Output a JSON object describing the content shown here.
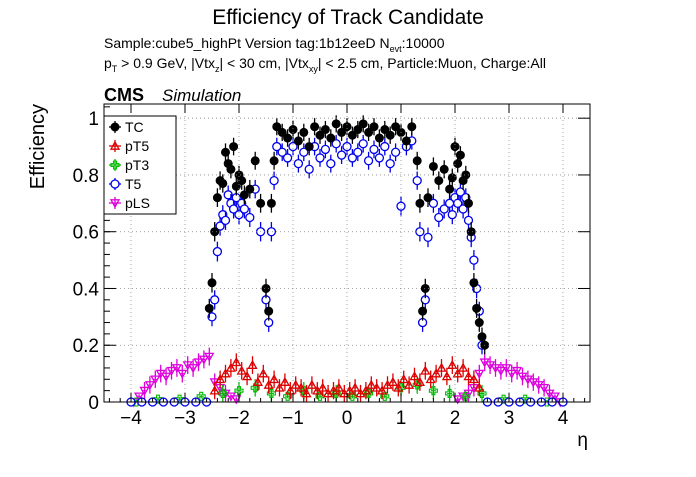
{
  "header": {
    "title": "Efficiency of Track Candidate",
    "line1": "Sample:cube5_highPt   Version tag:1b12eeD  N",
    "line1_sub": "evt",
    "line1_tail": ":10000",
    "line2_parts": [
      "p",
      "T",
      " > 0.9 GeV, |Vtx",
      "z",
      "| < 30 cm, |Vtx",
      "xy",
      "| < 2.5 cm, Particle:Muon, Charge:All"
    ],
    "cms": "CMS",
    "simulation": "Simulation"
  },
  "chart_data": {
    "type": "scatter",
    "title": "Efficiency of Track Candidate",
    "xlabel": "η",
    "ylabel": "Efficiency",
    "xlim": [
      -4.5,
      4.5
    ],
    "ylim": [
      0,
      1.05
    ],
    "xticks": [
      "−4",
      "−3",
      "−2",
      "−1",
      "0",
      "1",
      "2",
      "3",
      "4"
    ],
    "yticks": [
      "0",
      "0.2",
      "0.4",
      "0.6",
      "0.8",
      "1"
    ],
    "legend_position": "top-left",
    "series": [
      {
        "name": "TC",
        "color": "#000000",
        "marker": "filled-circle",
        "x": [
          -2.55,
          -2.5,
          -2.45,
          -2.4,
          -2.35,
          -2.3,
          -2.25,
          -2.2,
          -2.15,
          -2.1,
          -2.05,
          -2.0,
          -1.95,
          -1.9,
          -1.8,
          -1.7,
          -1.6,
          -1.5,
          -1.45,
          -1.4,
          -1.35,
          -1.3,
          -1.2,
          -1.1,
          -1.0,
          -0.9,
          -0.8,
          -0.7,
          -0.6,
          -0.5,
          -0.4,
          -0.3,
          -0.2,
          -0.1,
          0.0,
          0.1,
          0.2,
          0.3,
          0.4,
          0.5,
          0.6,
          0.7,
          0.8,
          0.9,
          1.0,
          1.1,
          1.2,
          1.3,
          1.35,
          1.4,
          1.45,
          1.5,
          1.6,
          1.7,
          1.8,
          1.9,
          1.95,
          2.0,
          2.05,
          2.1,
          2.15,
          2.2,
          2.25,
          2.3,
          2.35,
          2.4,
          2.45,
          2.5,
          2.55
        ],
        "y": [
          0.33,
          0.42,
          0.6,
          0.72,
          0.78,
          0.77,
          0.88,
          0.84,
          0.82,
          0.9,
          0.76,
          0.8,
          0.78,
          0.73,
          0.75,
          0.85,
          0.7,
          0.4,
          0.32,
          0.7,
          0.85,
          0.97,
          0.95,
          0.93,
          0.96,
          0.92,
          0.95,
          0.9,
          0.97,
          0.94,
          0.96,
          0.93,
          0.98,
          0.95,
          0.97,
          0.94,
          0.96,
          0.98,
          0.95,
          0.97,
          0.93,
          0.96,
          0.94,
          0.97,
          0.95,
          0.92,
          0.97,
          0.85,
          0.7,
          0.32,
          0.4,
          0.72,
          0.83,
          0.78,
          0.82,
          0.75,
          0.79,
          0.9,
          0.84,
          0.87,
          0.78,
          0.8,
          0.7,
          0.6,
          0.42,
          0.33,
          0.28,
          0.23,
          0.2
        ]
      },
      {
        "name": "pT5",
        "color": "#dd0000",
        "marker": "open-triangle-up",
        "x": [
          -2.45,
          -2.35,
          -2.25,
          -2.15,
          -2.05,
          -1.95,
          -1.85,
          -1.75,
          -1.65,
          -1.55,
          -1.45,
          -1.35,
          -1.25,
          -1.15,
          -1.05,
          -0.95,
          -0.85,
          -0.75,
          -0.65,
          -0.55,
          -0.45,
          -0.35,
          -0.25,
          -0.15,
          -0.05,
          0.05,
          0.15,
          0.25,
          0.35,
          0.45,
          0.55,
          0.65,
          0.75,
          0.85,
          0.95,
          1.05,
          1.15,
          1.25,
          1.35,
          1.45,
          1.55,
          1.65,
          1.75,
          1.85,
          1.95,
          2.05,
          2.15,
          2.25,
          2.35,
          2.45
        ],
        "y": [
          0.04,
          0.08,
          0.1,
          0.12,
          0.14,
          0.11,
          0.09,
          0.13,
          0.07,
          0.1,
          0.06,
          0.08,
          0.05,
          0.07,
          0.04,
          0.06,
          0.05,
          0.03,
          0.06,
          0.04,
          0.05,
          0.03,
          0.04,
          0.05,
          0.03,
          0.04,
          0.05,
          0.03,
          0.04,
          0.06,
          0.05,
          0.04,
          0.06,
          0.07,
          0.05,
          0.08,
          0.06,
          0.09,
          0.07,
          0.11,
          0.08,
          0.1,
          0.12,
          0.09,
          0.13,
          0.1,
          0.12,
          0.09,
          0.08,
          0.05
        ]
      },
      {
        "name": "pT3",
        "color": "#00bb00",
        "marker": "open-cross",
        "x": [
          -3.9,
          -3.5,
          -3.1,
          -2.7,
          -2.3,
          -2.0,
          -1.7,
          -1.4,
          -1.1,
          -0.8,
          -0.5,
          -0.2,
          0.1,
          0.4,
          0.7,
          1.0,
          1.3,
          1.6,
          1.9,
          2.2,
          2.5,
          2.9,
          3.3,
          3.7
        ],
        "y": [
          0.0,
          0.01,
          0.01,
          0.02,
          0.03,
          0.04,
          0.05,
          0.03,
          0.02,
          0.04,
          0.02,
          0.03,
          0.02,
          0.03,
          0.02,
          0.05,
          0.06,
          0.04,
          0.03,
          0.02,
          0.03,
          0.01,
          0.01,
          0.0
        ]
      },
      {
        "name": "T5",
        "color": "#0000ee",
        "marker": "open-circle",
        "x": [
          -4.0,
          -3.8,
          -3.6,
          -3.4,
          -3.2,
          -3.0,
          -2.8,
          -2.6,
          -2.5,
          -2.45,
          -2.4,
          -2.35,
          -2.3,
          -2.25,
          -2.2,
          -2.15,
          -2.1,
          -2.05,
          -2.0,
          -1.95,
          -1.9,
          -1.8,
          -1.7,
          -1.6,
          -1.5,
          -1.45,
          -1.4,
          -1.35,
          -1.3,
          -1.2,
          -1.1,
          -1.0,
          -0.9,
          -0.8,
          -0.7,
          -0.6,
          -0.5,
          -0.4,
          -0.3,
          -0.2,
          -0.1,
          0.0,
          0.1,
          0.2,
          0.3,
          0.4,
          0.5,
          0.6,
          0.7,
          0.8,
          0.9,
          1.0,
          1.1,
          1.2,
          1.3,
          1.35,
          1.4,
          1.45,
          1.5,
          1.6,
          1.7,
          1.8,
          1.9,
          1.95,
          2.0,
          2.05,
          2.1,
          2.15,
          2.2,
          2.25,
          2.3,
          2.35,
          2.4,
          2.45,
          2.5,
          2.6,
          2.8,
          3.0,
          3.2,
          3.4,
          3.6,
          3.8,
          4.0
        ],
        "y": [
          0.0,
          0.0,
          0.0,
          0.0,
          0.0,
          0.0,
          0.0,
          0.0,
          0.3,
          0.36,
          0.53,
          0.62,
          0.66,
          0.64,
          0.73,
          0.7,
          0.68,
          0.72,
          0.66,
          0.7,
          0.68,
          0.65,
          0.75,
          0.6,
          0.36,
          0.28,
          0.6,
          0.78,
          0.9,
          0.88,
          0.86,
          0.9,
          0.84,
          0.88,
          0.82,
          0.9,
          0.86,
          0.89,
          0.84,
          0.91,
          0.87,
          0.9,
          0.86,
          0.88,
          0.91,
          0.85,
          0.89,
          0.86,
          0.9,
          0.84,
          0.88,
          0.69,
          0.9,
          0.92,
          0.78,
          0.6,
          0.28,
          0.36,
          0.58,
          0.7,
          0.65,
          0.68,
          0.7,
          0.66,
          0.72,
          0.7,
          0.74,
          0.68,
          0.72,
          0.64,
          0.58,
          0.5,
          0.4,
          0.32,
          0.2,
          0.0,
          0.0,
          0.0,
          0.0,
          0.0,
          0.0,
          0.0,
          0.0
        ]
      },
      {
        "name": "pLS",
        "color": "#dd00dd",
        "marker": "open-triangle-down",
        "x": [
          -3.95,
          -3.85,
          -3.75,
          -3.65,
          -3.55,
          -3.45,
          -3.35,
          -3.25,
          -3.15,
          -3.05,
          -2.95,
          -2.85,
          -2.75,
          -2.65,
          -2.55,
          -2.45,
          -2.35,
          -2.25,
          -2.15,
          -2.05,
          2.05,
          2.15,
          2.25,
          2.35,
          2.45,
          2.55,
          2.65,
          2.75,
          2.85,
          2.95,
          3.05,
          3.15,
          3.25,
          3.35,
          3.45,
          3.55,
          3.65,
          3.75,
          3.85,
          3.95
        ],
        "y": [
          0.0,
          0.02,
          0.04,
          0.06,
          0.08,
          0.1,
          0.09,
          0.11,
          0.12,
          0.1,
          0.13,
          0.12,
          0.14,
          0.15,
          0.16,
          0.07,
          0.05,
          0.03,
          0.02,
          0.01,
          0.01,
          0.02,
          0.03,
          0.05,
          0.1,
          0.14,
          0.13,
          0.12,
          0.11,
          0.12,
          0.1,
          0.11,
          0.09,
          0.08,
          0.07,
          0.06,
          0.05,
          0.03,
          0.02,
          0.0
        ]
      }
    ]
  }
}
